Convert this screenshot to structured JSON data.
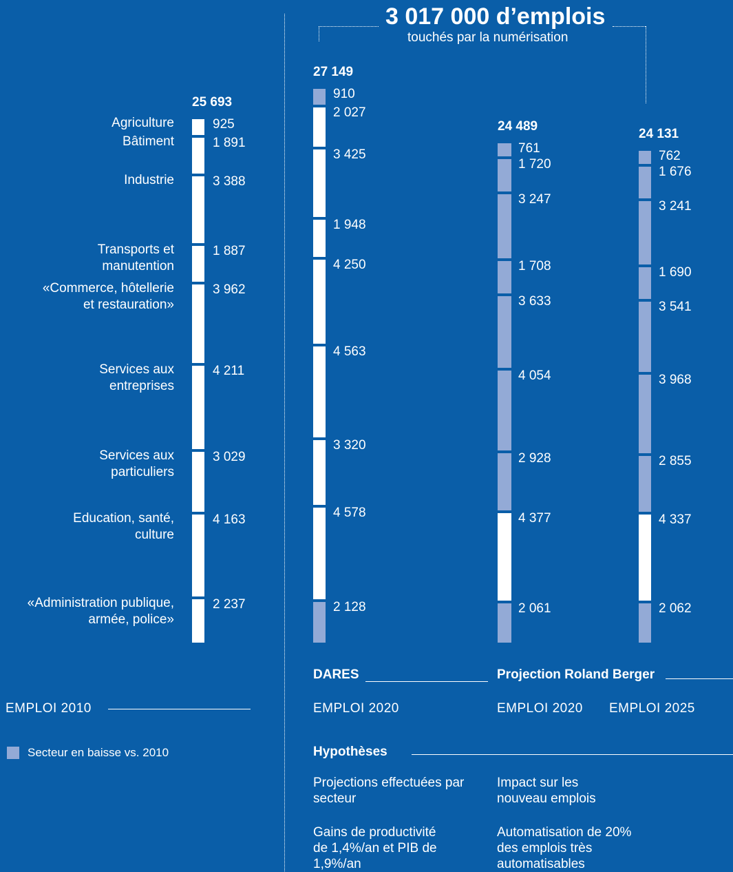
{
  "headline": {
    "title": "3 017 000 d’emplois",
    "subtitle": "touchés par la numérisation"
  },
  "colors": {
    "background": "#0a5ea8",
    "stable": "#ffffff",
    "decline": "#93aad6"
  },
  "chart_data": {
    "type": "bar",
    "stacked": true,
    "orientation": "vertical",
    "categories": [
      "Agriculture",
      "Bâtiment",
      "Industrie",
      "Transports et manutention",
      "«Commerce, hôtellerie et restauration»",
      "Services aux entreprises",
      "Services aux particuliers",
      "Education, santé, culture",
      "«Administration publique, armée, police»"
    ],
    "category_labels": [
      [
        "Agriculture"
      ],
      [
        "Bâtiment"
      ],
      [
        "Industrie"
      ],
      [
        "Transports et",
        "manutention"
      ],
      [
        "«Commerce, hôtellerie",
        "et restauration»"
      ],
      [
        "Services aux",
        "entreprises"
      ],
      [
        "Services aux",
        "particuliers"
      ],
      [
        "Education, santé,",
        "culture"
      ],
      [
        "«Administration publique,",
        "armée, police»"
      ]
    ],
    "series": [
      {
        "total": "25 693",
        "values": [
          925,
          1891,
          3388,
          1887,
          3962,
          4211,
          3029,
          4163,
          2237
        ],
        "labels": [
          "925",
          "1 891",
          "3 388",
          "1 887",
          "3 962",
          "4 211",
          "3 029",
          "4 163",
          "2 237"
        ],
        "decline": [
          false,
          false,
          false,
          false,
          false,
          false,
          false,
          false,
          false
        ]
      },
      {
        "total": "27 149",
        "values": [
          910,
          2027,
          3425,
          1948,
          4250,
          4563,
          3320,
          4578,
          2128
        ],
        "labels": [
          "910",
          "2 027",
          "3 425",
          "1 948",
          "4 250",
          "4 563",
          "3 320",
          "4 578",
          "2 128"
        ],
        "decline": [
          true,
          false,
          false,
          false,
          false,
          false,
          false,
          false,
          true
        ]
      },
      {
        "total": "24 489",
        "values": [
          761,
          1720,
          3247,
          1708,
          3633,
          4054,
          2928,
          4377,
          2061
        ],
        "labels": [
          "761",
          "1 720",
          "3 247",
          "1 708",
          "3 633",
          "4 054",
          "2 928",
          "4 377",
          "2 061"
        ],
        "decline": [
          true,
          true,
          true,
          true,
          true,
          true,
          true,
          false,
          true
        ]
      },
      {
        "total": "24 131",
        "values": [
          762,
          1676,
          3241,
          1690,
          3541,
          3968,
          2855,
          4337,
          2062
        ],
        "labels": [
          "762",
          "1 676",
          "3 241",
          "1 690",
          "3 541",
          "3 968",
          "2 855",
          "4 337",
          "2 062"
        ],
        "decline": [
          true,
          true,
          true,
          true,
          true,
          true,
          true,
          false,
          true
        ]
      }
    ]
  },
  "bottom": {
    "emploi2010": "EMPLOI 2010",
    "dares": "DARES",
    "roland": "Projection Roland Berger",
    "emploi2020_dares": "EMPLOI 2020",
    "emploi2020_rb": "EMPLOI 2020",
    "emploi2025": "EMPLOI 2025",
    "legend": "Secteur en baisse vs. 2010",
    "hypotheses_title": "Hypothèses",
    "hyp1": "Projections effectuées par secteur",
    "hyp2": "Gains de productivité de 1,4%/an et PIB de 1,9%/an",
    "hyp3": "Impact sur les nouveau emplois",
    "hyp4": "Automatisation de 20% des emplois très automatisables"
  }
}
